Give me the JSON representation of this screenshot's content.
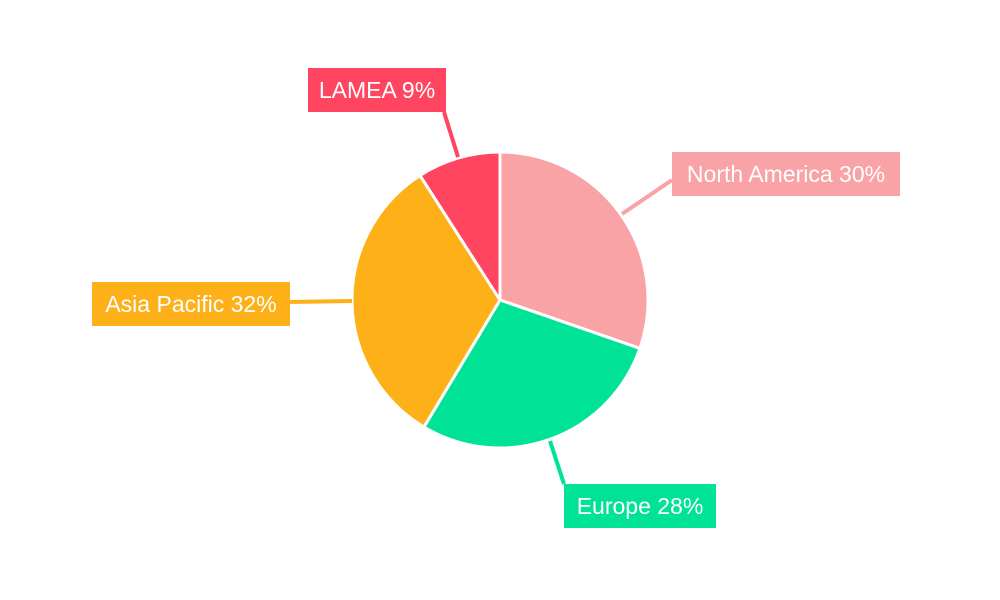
{
  "chart_data": {
    "type": "pie",
    "title": "",
    "slices": [
      {
        "name": "North America",
        "value": 30,
        "label": "North America 30%",
        "color": "#f9a3a6"
      },
      {
        "name": "Europe",
        "value": 28,
        "label": "Europe 28%",
        "color": "#00e396"
      },
      {
        "name": "Asia Pacific",
        "value": 32,
        "label": "Asia Pacific 32%",
        "color": "#feb019"
      },
      {
        "name": "LAMEA",
        "value": 9,
        "label": "LAMEA 9%",
        "color": "#ff4560"
      }
    ],
    "start_angle": "top",
    "direction": "clockwise",
    "legend": "none",
    "label_text_color": "#ffffff",
    "slice_border_color": "#ffffff"
  }
}
